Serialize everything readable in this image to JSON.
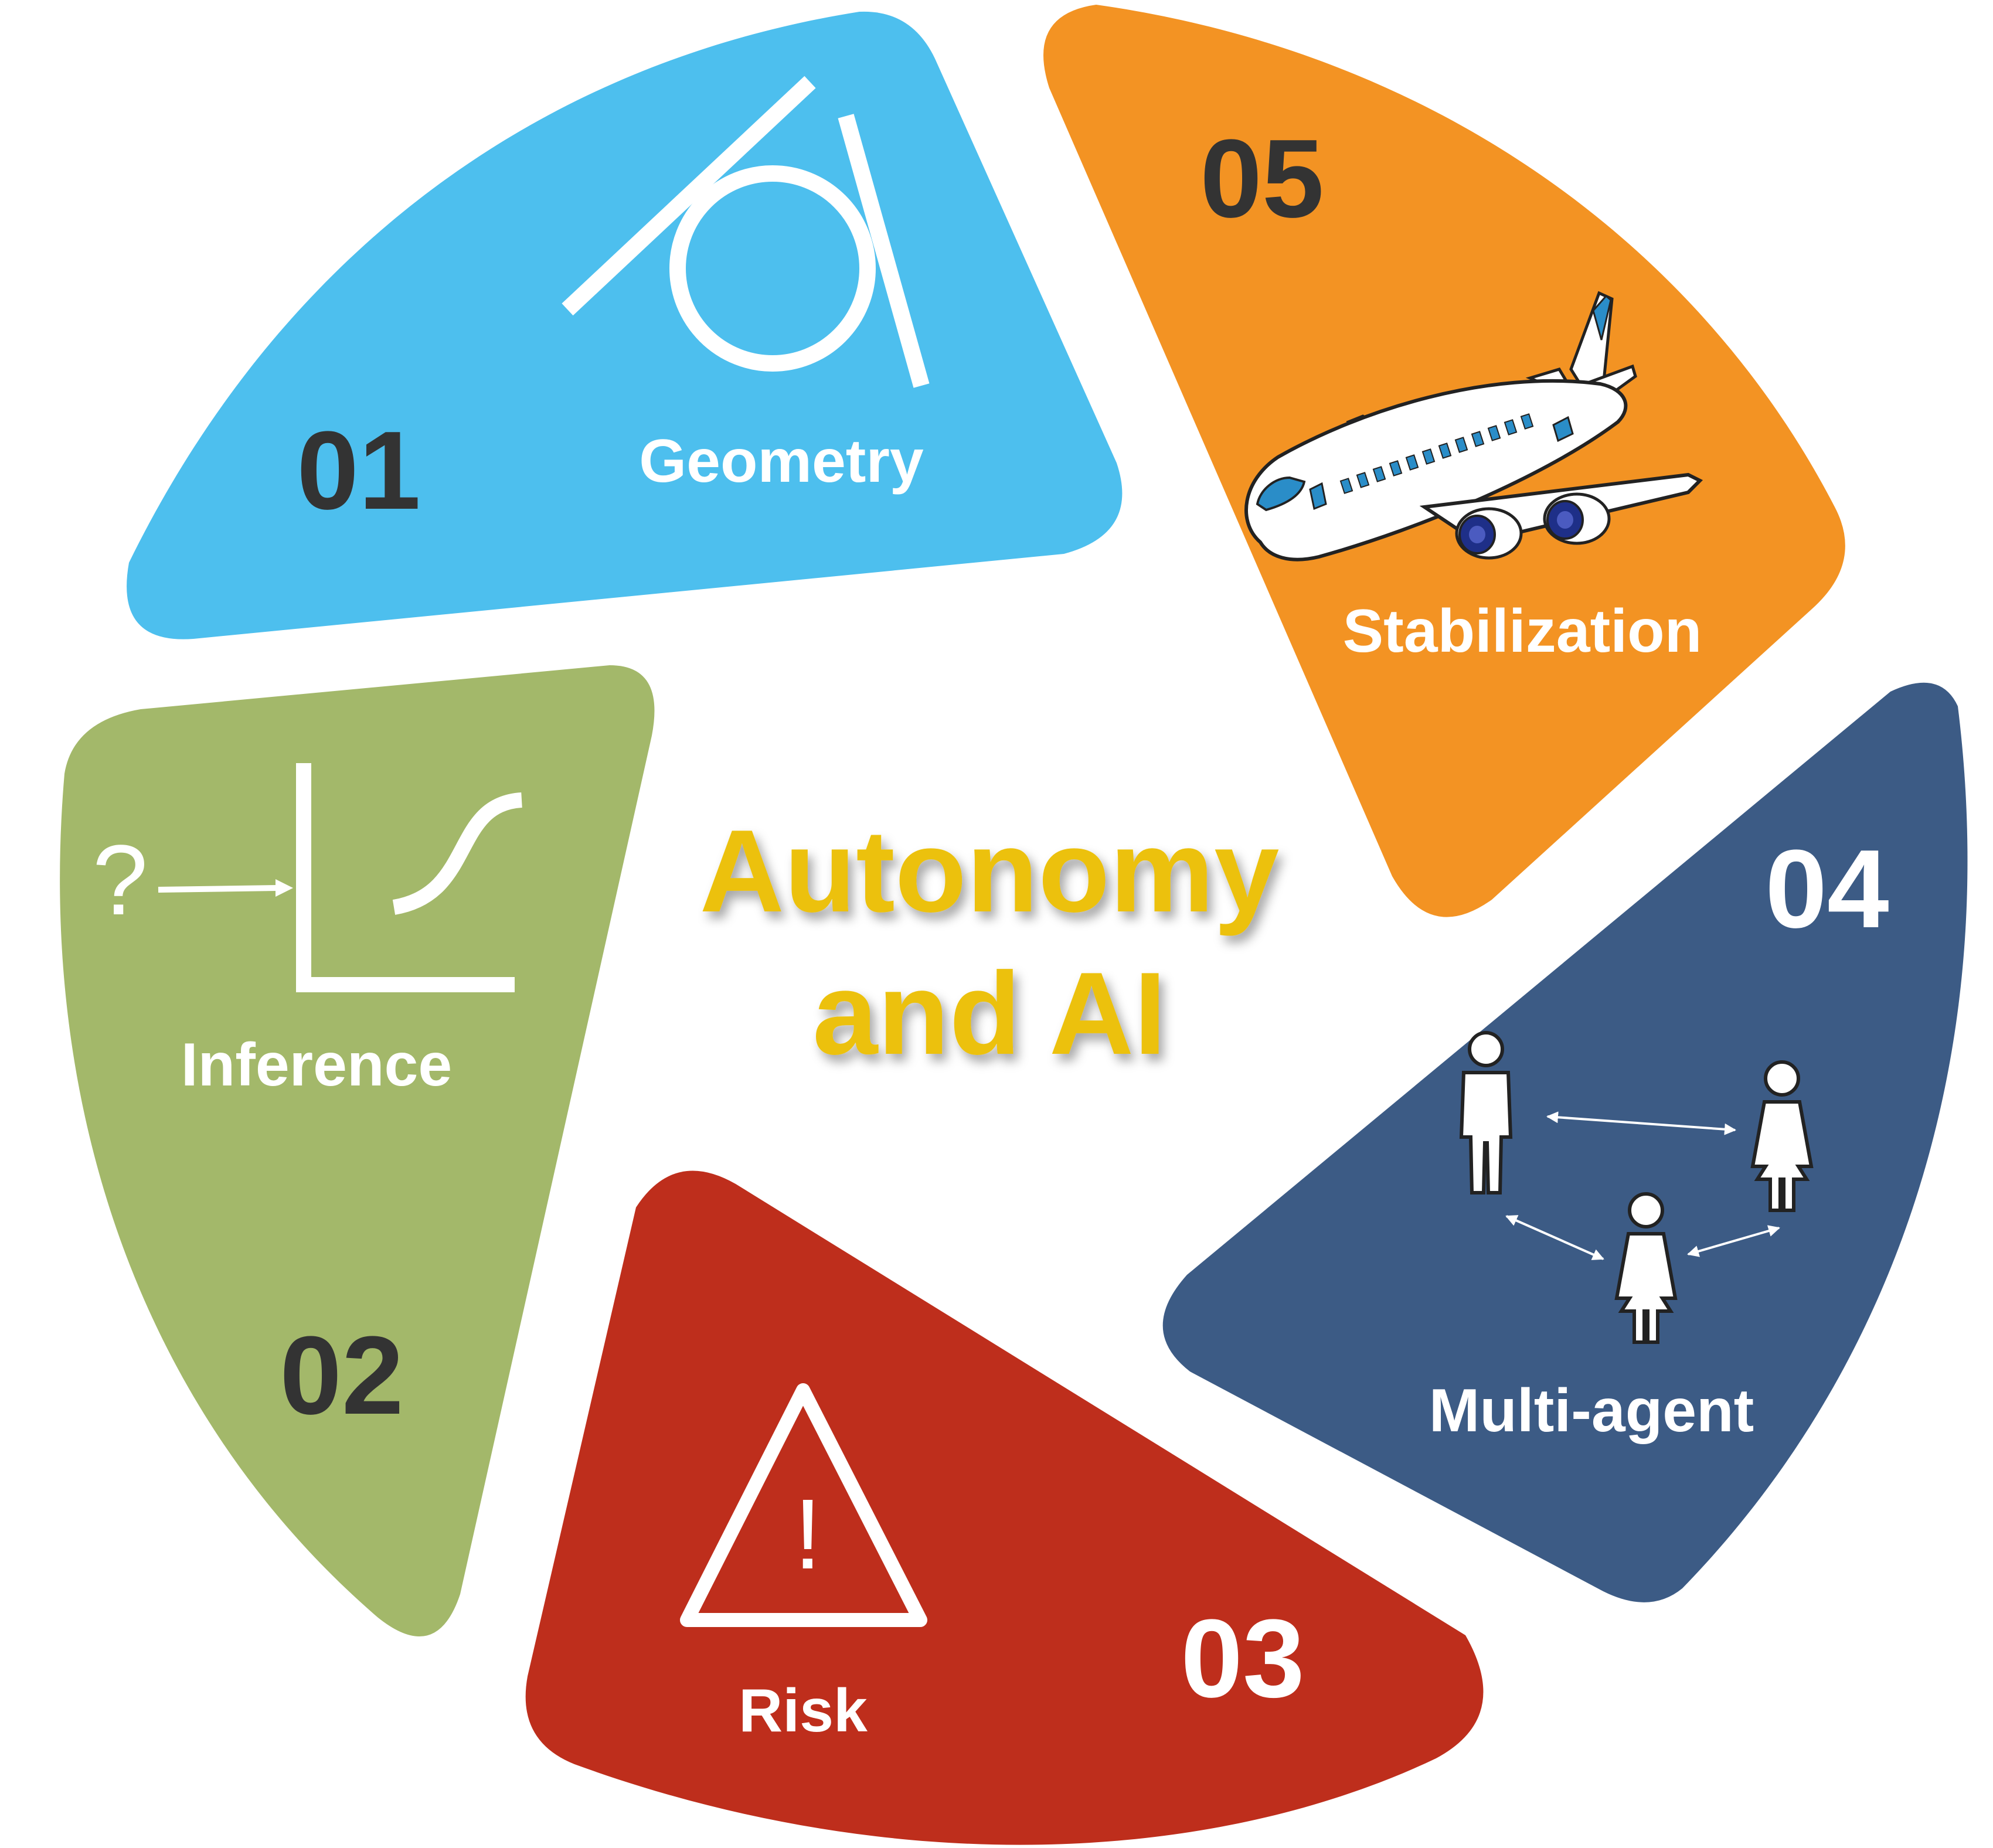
{
  "title": {
    "line1": "Autonomy",
    "line2": "and AI",
    "color": "#ECC10C"
  },
  "segments": [
    {
      "number": "01",
      "label": "Geometry",
      "color": "#4DBFEE",
      "number_color": "#333333",
      "icon": "geometry-circle-tangent-icon"
    },
    {
      "number": "02",
      "label": "Inference",
      "color": "#A3B86A",
      "number_color": "#333333",
      "icon": "inference-sigmoid-icon",
      "icon_text": "?"
    },
    {
      "number": "03",
      "label": "Risk",
      "color": "#BE2E1C",
      "number_color": "#FFFFFF",
      "icon": "warning-triangle-icon",
      "icon_text": "!"
    },
    {
      "number": "04",
      "label": "Multi-agent",
      "color": "#3C5B85",
      "number_color": "#FFFFFF",
      "icon": "multi-agent-people-icon"
    },
    {
      "number": "05",
      "label": "Stabilization",
      "color": "#F39323",
      "number_color": "#333333",
      "icon": "airplane-icon"
    }
  ]
}
